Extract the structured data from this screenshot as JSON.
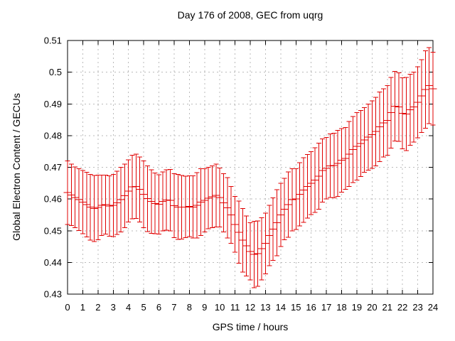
{
  "chart_data": {
    "type": "scatter",
    "style": "yerrorbars",
    "title": "Day 176 of 2008, GEC from uqrg",
    "xlabel": "GPS time / hours",
    "ylabel": "Global Electron Content / GECUs",
    "xlim": [
      0,
      24
    ],
    "ylim": [
      0.43,
      0.51
    ],
    "grid": true,
    "legend": false,
    "xticks": [
      0,
      1,
      2,
      3,
      4,
      5,
      6,
      7,
      8,
      9,
      10,
      11,
      12,
      13,
      14,
      15,
      16,
      17,
      18,
      19,
      20,
      21,
      22,
      23,
      24
    ],
    "xtick_labels": [
      "0",
      "1",
      "2",
      "3",
      "4",
      "5",
      "6",
      "7",
      "8",
      "9",
      "10",
      "11",
      "12",
      "13",
      "14",
      "15",
      "16",
      "17",
      "18",
      "19",
      "20",
      "21",
      "22",
      "23",
      "24"
    ],
    "yticks": [
      0.43,
      0.44,
      0.45,
      0.46,
      0.47,
      0.48,
      0.49,
      0.5,
      0.51
    ],
    "ytick_labels": [
      "0.43",
      "0.44",
      "0.45",
      "0.46",
      "0.47",
      "0.48",
      "0.49",
      "0.5",
      "0.51"
    ],
    "colors": {
      "series": "#e00000",
      "grid": "#bbbbbb",
      "axis": "#000000",
      "text": "#000000",
      "background": "#ffffff"
    },
    "x": [
      0,
      0.25,
      0.5,
      0.75,
      1,
      1.25,
      1.5,
      1.75,
      2,
      2.25,
      2.5,
      2.75,
      3,
      3.25,
      3.5,
      3.75,
      4,
      4.25,
      4.5,
      4.75,
      5,
      5.25,
      5.5,
      5.75,
      6,
      6.25,
      6.5,
      6.75,
      7,
      7.25,
      7.5,
      7.75,
      8,
      8.25,
      8.5,
      8.75,
      9,
      9.25,
      9.5,
      9.75,
      10,
      10.25,
      10.5,
      10.75,
      11,
      11.25,
      11.5,
      11.75,
      12,
      12.25,
      12.5,
      12.75,
      13,
      13.25,
      13.5,
      13.75,
      14,
      14.25,
      14.5,
      14.75,
      15,
      15.25,
      15.5,
      15.75,
      16,
      16.25,
      16.5,
      16.75,
      17,
      17.25,
      17.5,
      17.75,
      18,
      18.25,
      18.5,
      18.75,
      19,
      19.25,
      19.5,
      19.75,
      20,
      20.25,
      20.5,
      20.75,
      21,
      21.25,
      21.5,
      21.75,
      22,
      22.25,
      22.5,
      22.75,
      23,
      23.25,
      23.5,
      23.75,
      24
    ],
    "series": [
      {
        "name": "GEC",
        "values": [
          0.462,
          0.4613,
          0.4605,
          0.4598,
          0.459,
          0.4582,
          0.4574,
          0.457,
          0.4573,
          0.458,
          0.4582,
          0.4578,
          0.458,
          0.4588,
          0.4598,
          0.461,
          0.4625,
          0.4638,
          0.464,
          0.463,
          0.4615,
          0.4601,
          0.4592,
          0.4586,
          0.4583,
          0.4592,
          0.4597,
          0.4596,
          0.4579,
          0.4575,
          0.4574,
          0.4575,
          0.4577,
          0.4575,
          0.458,
          0.459,
          0.4596,
          0.4603,
          0.4607,
          0.4611,
          0.4605,
          0.4588,
          0.4572,
          0.455,
          0.452,
          0.4495,
          0.447,
          0.4452,
          0.4435,
          0.4425,
          0.4428,
          0.4443,
          0.446,
          0.4485,
          0.4505,
          0.4525,
          0.455,
          0.4568,
          0.4582,
          0.4598,
          0.46,
          0.4615,
          0.4628,
          0.464,
          0.465,
          0.466,
          0.4672,
          0.469,
          0.4697,
          0.4705,
          0.4706,
          0.4712,
          0.4722,
          0.4728,
          0.4742,
          0.4756,
          0.4766,
          0.4775,
          0.4786,
          0.4795,
          0.4803,
          0.4813,
          0.4828,
          0.484,
          0.4848,
          0.4872,
          0.4893,
          0.489,
          0.487,
          0.4868,
          0.4882,
          0.489,
          0.4905,
          0.4925,
          0.4945,
          0.4958,
          0.4948
        ],
        "yerr": [
          0.01,
          0.0097,
          0.0096,
          0.0097,
          0.01,
          0.0102,
          0.0104,
          0.0104,
          0.0102,
          0.0095,
          0.0093,
          0.0095,
          0.0098,
          0.01,
          0.0102,
          0.01,
          0.0098,
          0.01,
          0.0101,
          0.0103,
          0.0105,
          0.0104,
          0.01,
          0.0096,
          0.0094,
          0.0093,
          0.0095,
          0.0097,
          0.0101,
          0.0103,
          0.01,
          0.0097,
          0.0096,
          0.0098,
          0.0103,
          0.0105,
          0.01,
          0.0097,
          0.0097,
          0.0099,
          0.0093,
          0.0092,
          0.0095,
          0.009,
          0.0088,
          0.0098,
          0.01,
          0.0095,
          0.009,
          0.0105,
          0.0103,
          0.0098,
          0.0096,
          0.0095,
          0.0099,
          0.0104,
          0.01,
          0.0097,
          0.0103,
          0.0098,
          0.0096,
          0.01,
          0.0102,
          0.01,
          0.0099,
          0.0102,
          0.0104,
          0.01,
          0.0097,
          0.01,
          0.0102,
          0.0104,
          0.01,
          0.0098,
          0.0102,
          0.0104,
          0.0106,
          0.0104,
          0.0102,
          0.0104,
          0.0106,
          0.0108,
          0.011,
          0.0108,
          0.011,
          0.0112,
          0.011,
          0.0108,
          0.0112,
          0.0115,
          0.0112,
          0.011,
          0.0112,
          0.0115,
          0.0122,
          0.012,
          0.0115
        ]
      }
    ]
  }
}
